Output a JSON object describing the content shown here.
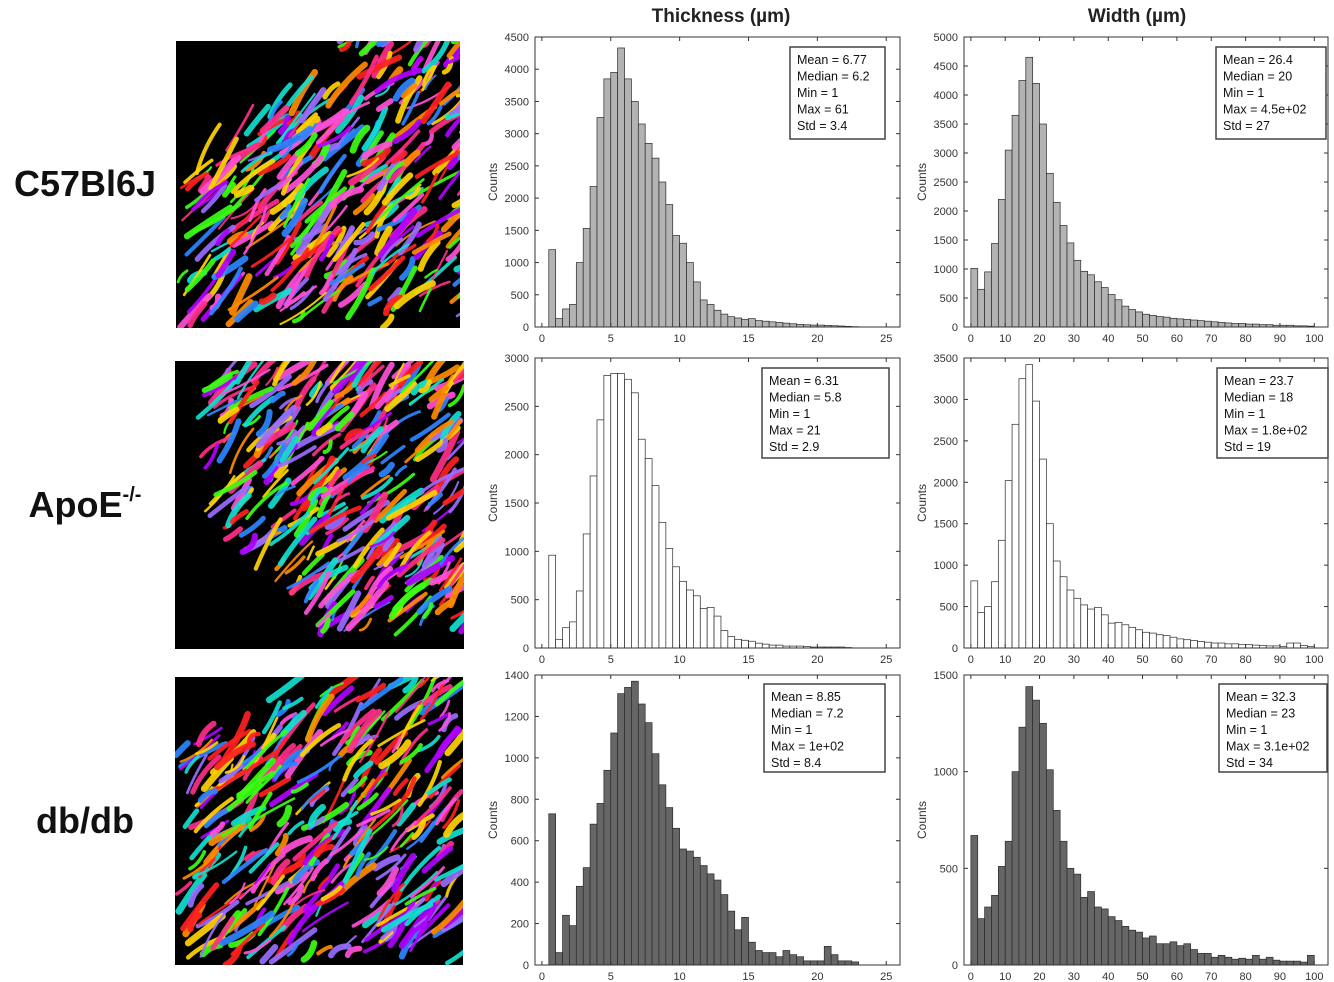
{
  "columns": {
    "thickness": "Thickness (µm)",
    "width": "Width (µm)"
  },
  "rows": [
    {
      "label": "C57Bl6J",
      "sup": ""
    },
    {
      "label": "ApoE",
      "sup": "-/-"
    },
    {
      "label": "db/db",
      "sup": ""
    }
  ],
  "colors": {
    "gray_fill": "#b3b3b3",
    "open_fill": "#ffffff",
    "dark_fill": "#666666",
    "bar_edge": "#2a2a2a",
    "micro_palette": [
      "#ff2e88",
      "#b000ff",
      "#2d86ff",
      "#10e0d0",
      "#ff8a00",
      "#ffd400",
      "#39ff14",
      "#ff1f1f",
      "#9a6bff",
      "#ff4fd8"
    ]
  },
  "chart_data": [
    {
      "type": "bar",
      "row": 0,
      "column": "thickness",
      "title": "",
      "xlabel": "",
      "ylabel": "Counts",
      "xlim": [
        -0.5,
        26
      ],
      "ylim": [
        0,
        4500
      ],
      "bin_width": 0.5,
      "xticks": [
        0,
        5,
        10,
        15,
        20,
        25
      ],
      "yticks": [
        0,
        500,
        1000,
        1500,
        2000,
        2500,
        3000,
        3500,
        4000,
        4500
      ],
      "x_start": 0.5,
      "values": [
        1200,
        130,
        280,
        350,
        1000,
        1530,
        2180,
        3250,
        3850,
        3950,
        4330,
        3850,
        3500,
        3150,
        2850,
        2620,
        2250,
        1900,
        1420,
        1300,
        1000,
        700,
        420,
        350,
        260,
        200,
        160,
        140,
        120,
        130,
        100,
        90,
        80,
        70,
        60,
        50,
        40,
        35,
        30,
        30,
        25,
        20,
        15,
        10,
        5
      ],
      "stats": [
        "Mean = 6.77",
        "Median = 6.2",
        "Min = 1",
        "Max = 61",
        "Std = 3.4"
      ]
    },
    {
      "type": "bar",
      "row": 0,
      "column": "width",
      "title": "",
      "xlabel": "",
      "ylabel": "Counts",
      "xlim": [
        -2,
        104
      ],
      "ylim": [
        0,
        5000
      ],
      "bin_width": 2,
      "xticks": [
        0,
        10,
        20,
        30,
        40,
        50,
        60,
        70,
        80,
        90,
        100
      ],
      "yticks": [
        0,
        500,
        1000,
        1500,
        2000,
        2500,
        3000,
        3500,
        4000,
        4500,
        5000
      ],
      "x_start": 0,
      "values": [
        1010,
        650,
        950,
        1440,
        2200,
        3050,
        3650,
        4250,
        4650,
        4200,
        3500,
        2650,
        2150,
        1750,
        1450,
        1150,
        960,
        900,
        780,
        680,
        560,
        470,
        360,
        300,
        260,
        220,
        200,
        180,
        170,
        150,
        140,
        130,
        120,
        110,
        100,
        90,
        80,
        70,
        60,
        60,
        50,
        50,
        40,
        40,
        30,
        30,
        30,
        20,
        20,
        15
      ],
      "stats": [
        "Mean = 26.4",
        "Median = 20",
        "Min = 1",
        "Max = 4.5e+02",
        "Std = 27"
      ]
    },
    {
      "type": "bar",
      "row": 1,
      "column": "thickness",
      "title": "",
      "xlabel": "",
      "ylabel": "Counts",
      "xlim": [
        -0.5,
        26
      ],
      "ylim": [
        0,
        3000
      ],
      "bin_width": 0.5,
      "xticks": [
        0,
        5,
        10,
        15,
        20,
        25
      ],
      "yticks": [
        0,
        500,
        1000,
        1500,
        2000,
        2500,
        3000
      ],
      "x_start": 0.5,
      "values": [
        960,
        90,
        210,
        270,
        590,
        1180,
        1780,
        2360,
        2820,
        2840,
        2840,
        2780,
        2640,
        2160,
        1960,
        1680,
        1300,
        1030,
        840,
        690,
        600,
        540,
        410,
        420,
        330,
        180,
        120,
        90,
        80,
        70,
        50,
        40,
        30,
        30,
        20,
        20,
        20,
        15,
        10,
        10,
        10,
        10,
        10,
        5
      ],
      "stats": [
        "Mean = 6.31",
        "Median = 5.8",
        "Min = 1",
        "Max = 21",
        "Std = 2.9"
      ]
    },
    {
      "type": "bar",
      "row": 1,
      "column": "width",
      "title": "",
      "xlabel": "",
      "ylabel": "Counts",
      "xlim": [
        -2,
        104
      ],
      "ylim": [
        0,
        3500
      ],
      "bin_width": 2,
      "xticks": [
        0,
        10,
        20,
        30,
        40,
        50,
        60,
        70,
        80,
        90,
        100
      ],
      "yticks": [
        0,
        500,
        1000,
        1500,
        2000,
        2500,
        3000,
        3500
      ],
      "x_start": 0,
      "values": [
        810,
        430,
        500,
        800,
        1300,
        2020,
        2700,
        3250,
        3420,
        2980,
        2280,
        1500,
        1050,
        860,
        700,
        600,
        520,
        470,
        490,
        400,
        300,
        310,
        280,
        250,
        220,
        190,
        180,
        160,
        150,
        130,
        110,
        100,
        90,
        80,
        70,
        60,
        60,
        50,
        50,
        40,
        40,
        35,
        30,
        25,
        25,
        20,
        60,
        60,
        30,
        20
      ],
      "stats": [
        "Mean = 23.7",
        "Median = 18",
        "Min = 1",
        "Max = 1.8e+02",
        "Std = 19"
      ]
    },
    {
      "type": "bar",
      "row": 2,
      "column": "thickness",
      "title": "",
      "xlabel": "",
      "ylabel": "Counts",
      "xlim": [
        -0.5,
        26
      ],
      "ylim": [
        0,
        1400
      ],
      "bin_width": 0.5,
      "xticks": [
        0,
        5,
        10,
        15,
        20,
        25
      ],
      "yticks": [
        0,
        200,
        400,
        600,
        800,
        1000,
        1200,
        1400
      ],
      "x_start": 0.5,
      "values": [
        730,
        60,
        240,
        190,
        380,
        470,
        680,
        780,
        940,
        1120,
        1310,
        1340,
        1370,
        1260,
        1170,
        1020,
        870,
        760,
        660,
        560,
        550,
        520,
        480,
        440,
        410,
        340,
        260,
        170,
        230,
        110,
        70,
        60,
        60,
        40,
        70,
        50,
        40,
        20,
        20,
        20,
        90,
        50,
        20,
        20,
        15
      ],
      "stats": [
        "Mean = 8.85",
        "Median = 7.2",
        "Min = 1",
        "Max = 1e+02",
        "Std = 8.4"
      ]
    },
    {
      "type": "bar",
      "row": 2,
      "column": "width",
      "title": "",
      "xlabel": "",
      "ylabel": "Counts",
      "xlim": [
        -2,
        104
      ],
      "ylim": [
        0,
        1500
      ],
      "bin_width": 2,
      "xticks": [
        0,
        10,
        20,
        30,
        40,
        50,
        60,
        70,
        80,
        90,
        100
      ],
      "yticks": [
        0,
        500,
        1000,
        1500
      ],
      "x_start": 0,
      "values": [
        670,
        240,
        300,
        360,
        510,
        640,
        1000,
        1230,
        1440,
        1370,
        1250,
        1010,
        800,
        640,
        500,
        470,
        350,
        380,
        300,
        290,
        250,
        230,
        200,
        180,
        170,
        140,
        150,
        110,
        110,
        120,
        100,
        110,
        80,
        60,
        60,
        40,
        50,
        40,
        30,
        35,
        30,
        50,
        30,
        40,
        25,
        20,
        20,
        20,
        15,
        50
      ],
      "stats": [
        "Mean = 32.3",
        "Median = 23",
        "Min = 1",
        "Max = 3.1e+02",
        "Std = 34"
      ]
    }
  ]
}
